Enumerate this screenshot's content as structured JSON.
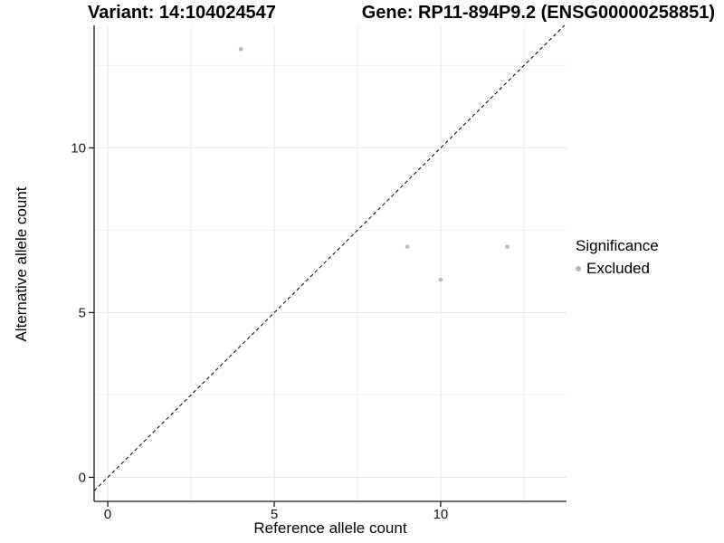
{
  "chart_data": {
    "type": "scatter",
    "title_left": "Variant: 14:104024547",
    "title_right": "Gene: RP11-894P9.2 (ENSG00000258851)",
    "xlabel": "Reference allele count",
    "ylabel": "Alternative allele count",
    "xlim": [
      -0.41,
      13.78
    ],
    "ylim": [
      -0.73,
      13.72
    ],
    "x_major_ticks": [
      0,
      5,
      10
    ],
    "y_major_ticks": [
      0,
      5,
      10
    ],
    "x_minor_ticks": [
      2.5,
      7.5,
      12.5
    ],
    "y_minor_ticks": [
      2.5,
      7.5,
      12.5
    ],
    "grid": true,
    "identity_line": {
      "type": "dashed",
      "equation": "y = x"
    },
    "series": [
      {
        "name": "Excluded",
        "color": "#b9b9b9",
        "points": [
          {
            "x": 4,
            "y": 13
          },
          {
            "x": 9,
            "y": 7
          },
          {
            "x": 10,
            "y": 6
          },
          {
            "x": 12,
            "y": 7
          }
        ]
      }
    ],
    "legend": {
      "position": "right",
      "title": "Significance",
      "items": [
        {
          "label": "Excluded",
          "color": "#b9b9b9"
        }
      ]
    },
    "colors": {
      "background": "#ffffff",
      "axis_line": "#1a1a1a",
      "grid_major": "#e6e6e6",
      "grid_minor": "#f2f2f2",
      "tick_text": "#1a1a1a",
      "identity_line": "#000000"
    }
  }
}
